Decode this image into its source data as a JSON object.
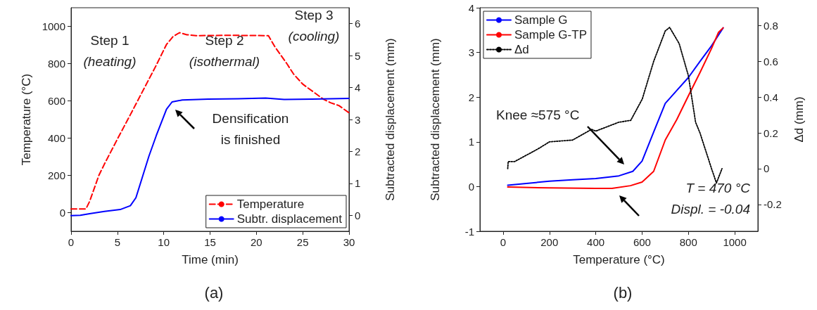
{
  "chart_data": [
    {
      "type": "line",
      "title": "(a)",
      "xlabel": "Time (min)",
      "ylabel": "Temperature (°C)",
      "y2label": "Subtracted displacement (mm)",
      "xlim": [
        0,
        30
      ],
      "xticks": [
        0,
        5,
        10,
        15,
        20,
        25,
        30
      ],
      "ylim": [
        -100,
        1100
      ],
      "yticks": [
        0,
        200,
        400,
        600,
        800,
        1000
      ],
      "y2lim": [
        -0.5,
        6.5
      ],
      "y2ticks": [
        0,
        1,
        2,
        3,
        4,
        5,
        6
      ],
      "legend": "bottom right",
      "marker": "none",
      "annotations": [
        "Step 1\n(heating)",
        "Step 2\n(isothermal)",
        "Step 3\n(cooling)",
        "Densification\nis finished"
      ],
      "series": [
        {
          "name": "Temperature",
          "color": "#ff0000",
          "line_style": "dashed",
          "x": [
            0,
            1.6,
            2,
            3,
            3.6,
            5,
            6.4,
            7,
            9.2,
            10.3,
            11,
            11.7,
            12.5,
            13.5,
            17,
            21.3,
            22,
            23.3,
            24,
            25,
            26.1,
            27.2,
            28,
            28.9,
            30
          ],
          "values": [
            20,
            20,
            60,
            200,
            261,
            395,
            526,
            583,
            792,
            903,
            945,
            966,
            955,
            950,
            952,
            950,
            890,
            799,
            745,
            690,
            650,
            610,
            590,
            575,
            536
          ]
        },
        {
          "name": "Subtr. displacement",
          "color": "#0000ff",
          "line_style": "solid",
          "axis": "y2",
          "x": [
            0,
            1,
            2,
            3.6,
            5.3,
            6.4,
            7,
            7.7,
            8.4,
            9.2,
            10.3,
            10.9,
            12,
            14.8,
            18,
            21,
            23,
            26,
            30
          ],
          "values": [
            -0.01,
            0,
            0.05,
            0.12,
            0.18,
            0.3,
            0.55,
            1.2,
            1.85,
            2.5,
            3.32,
            3.55,
            3.61,
            3.64,
            3.65,
            3.67,
            3.63,
            3.64,
            3.66
          ]
        }
      ]
    },
    {
      "type": "line",
      "title": "(b)",
      "xlabel": "Temperature (°C)",
      "ylabel": "Subtracted displacement (mm)",
      "y2label": "Δd (mm)",
      "xlim": [
        -100,
        1100
      ],
      "xticks": [
        0,
        200,
        400,
        600,
        800,
        1000
      ],
      "ylim": [
        -1,
        4
      ],
      "yticks": [
        -1,
        0,
        1,
        2,
        3,
        4
      ],
      "y2lim": [
        -0.35,
        0.9
      ],
      "y2ticks": [
        -0.2,
        0,
        0.2,
        0.4,
        0.6,
        0.8
      ],
      "legend": "top left",
      "marker": "none",
      "annotations": [
        "Knee ≈575 °C",
        "T = 470 °C\nDispl. = -0.04"
      ],
      "series": [
        {
          "name": "Sample G",
          "color": "#0000ff",
          "line_style": "solid",
          "x": [
            20,
            100,
            200,
            300,
            400,
            500,
            560,
            600,
            650,
            700,
            750,
            800,
            850,
            900,
            950
          ],
          "values": [
            0.03,
            0.07,
            0.12,
            0.15,
            0.18,
            0.24,
            0.34,
            0.57,
            1.22,
            1.86,
            2.15,
            2.44,
            2.8,
            3.15,
            3.55
          ]
        },
        {
          "name": "Sample G-TP",
          "color": "#ff0000",
          "line_style": "solid",
          "x": [
            20,
            200,
            400,
            470,
            550,
            600,
            650,
            700,
            750,
            800,
            850,
            900,
            930,
            950
          ],
          "values": [
            -0.01,
            -0.03,
            -0.04,
            -0.04,
            0.02,
            0.1,
            0.34,
            1.04,
            1.5,
            2.03,
            2.55,
            3.09,
            3.45,
            3.55
          ]
        },
        {
          "name": "Δd",
          "color": "#000000",
          "line_style": "dotted",
          "axis": "y2",
          "x": [
            20,
            22,
            50,
            150,
            200,
            300,
            382,
            400,
            500,
            551,
            601,
            650,
            700,
            719,
            760,
            800,
            831,
            850,
            900,
            921,
            945
          ],
          "values": [
            0,
            0.04,
            0.04,
            0.11,
            0.15,
            0.16,
            0.22,
            0.21,
            0.26,
            0.27,
            0.39,
            0.6,
            0.77,
            0.79,
            0.7,
            0.52,
            0.26,
            0.2,
            0,
            -0.08,
            0
          ]
        }
      ]
    }
  ]
}
